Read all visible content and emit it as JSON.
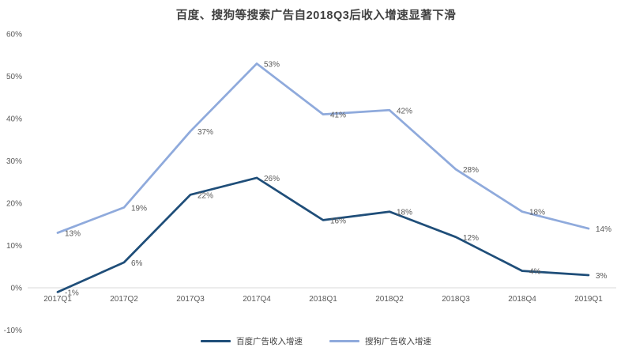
{
  "title": "百度、搜狗等搜索广告自2018Q3后收入增速显著下滑",
  "chart_data": {
    "type": "line",
    "title": "百度、搜狗等搜索广告自2018Q3后收入增速显著下滑",
    "categories": [
      "2017Q1",
      "2017Q2",
      "2017Q3",
      "2017Q4",
      "2018Q1",
      "2018Q2",
      "2018Q3",
      "2018Q4",
      "2019Q1"
    ],
    "series": [
      {
        "name": "百度广告收入增速",
        "color": "#1f4e79",
        "values": [
          -1,
          6,
          22,
          26,
          16,
          18,
          12,
          4,
          3
        ]
      },
      {
        "name": "搜狗广告收入增速",
        "color": "#8faadc",
        "values": [
          13,
          19,
          37,
          53,
          41,
          42,
          28,
          18,
          14
        ]
      }
    ],
    "xlabel": "",
    "ylabel": "",
    "ylim": [
      -10,
      60
    ],
    "yticks": [
      60,
      50,
      40,
      30,
      20,
      10,
      0,
      -10
    ],
    "ytick_suffix": "%",
    "data_label_suffix": "%",
    "grid": "zero-axis-line-only",
    "zero_axis_color": "#d9d9d9",
    "legend_position": "bottom",
    "background": "#ffffff"
  }
}
